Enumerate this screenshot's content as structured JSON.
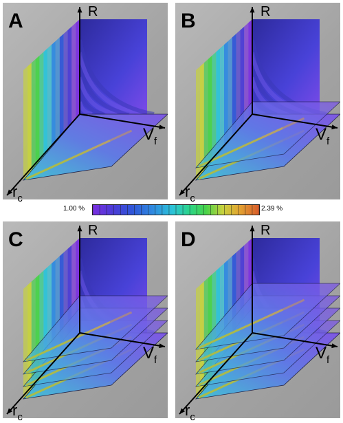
{
  "panels": [
    {
      "letter": "A",
      "axis_R": "R",
      "axis_V": "V",
      "axis_V_sub": "f",
      "axis_r": "r",
      "axis_r_sub": "c",
      "slices": 1
    },
    {
      "letter": "B",
      "axis_R": "R",
      "axis_V": "V",
      "axis_V_sub": "f",
      "axis_r": "r",
      "axis_r_sub": "c",
      "slices": 2
    },
    {
      "letter": "C",
      "axis_R": "R",
      "axis_V": "V",
      "axis_V_sub": "f",
      "axis_r": "r",
      "axis_r_sub": "c",
      "slices": 4
    },
    {
      "letter": "D",
      "axis_R": "R",
      "axis_V": "V",
      "axis_V_sub": "f",
      "axis_r": "r",
      "axis_r_sub": "c",
      "slices": 5
    }
  ],
  "colorbar": {
    "min_label": "1.00 %",
    "max_label": "2.39 %",
    "colors": [
      "#7a2fe0",
      "#4b3bd6",
      "#2f56d8",
      "#2f8ae0",
      "#2cc3d8",
      "#2bd48a",
      "#48d34a",
      "#c6d23e",
      "#e3a532",
      "#d85b2b"
    ]
  }
}
